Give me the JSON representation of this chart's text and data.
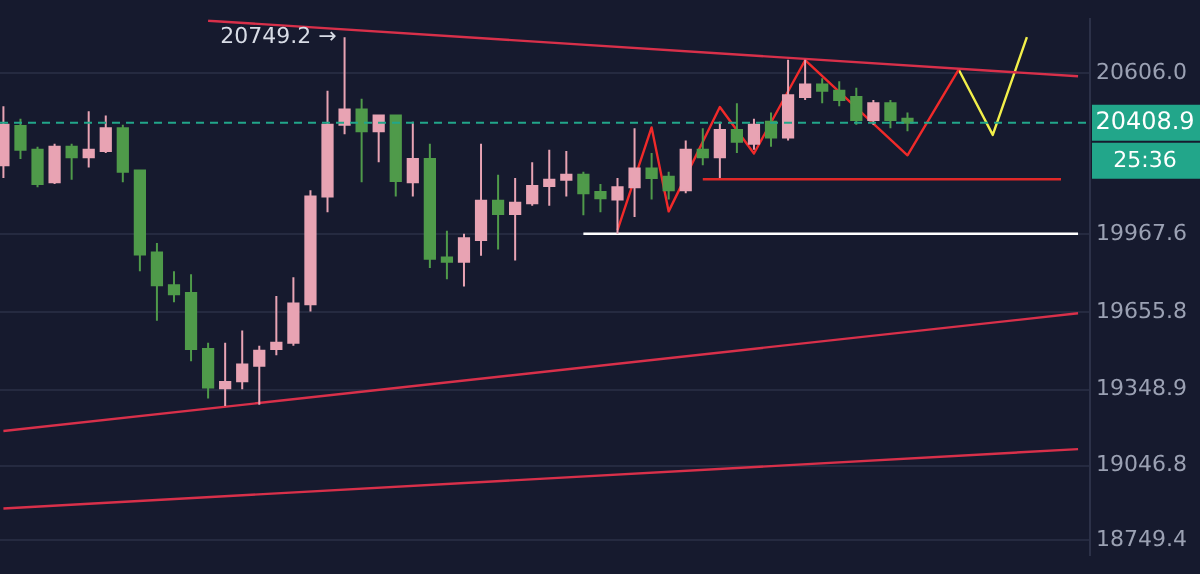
{
  "chart_data": {
    "type": "candlestick",
    "categories": [
      null,
      null,
      null,
      null,
      null,
      null,
      null,
      null,
      null,
      null,
      null,
      null,
      null,
      null,
      null,
      null,
      null,
      null,
      null,
      null,
      null,
      null,
      null,
      null,
      null,
      null,
      null,
      null,
      null,
      null,
      null,
      null,
      null,
      null,
      null,
      null,
      null,
      null,
      null,
      null,
      null,
      null,
      null,
      null,
      null,
      null,
      null,
      null,
      null,
      null,
      null,
      null,
      null,
      null,
      null,
      null,
      null,
      null,
      null,
      null,
      null,
      null,
      null,
      null
    ],
    "ohlc": [
      [
        20240,
        20475,
        20190,
        20401
      ],
      [
        20396,
        20425,
        20265,
        20302
      ],
      [
        20302,
        20314,
        20153,
        20166
      ],
      [
        20173,
        20326,
        20166,
        20314
      ],
      [
        20314,
        20326,
        20183,
        20272
      ],
      [
        20272,
        20455,
        20232,
        20302
      ],
      [
        20297,
        20438,
        20289,
        20388
      ],
      [
        20388,
        20401,
        20173,
        20215
      ],
      [
        20220,
        20220,
        19819,
        19886
      ],
      [
        19894,
        19931,
        19622,
        19763
      ],
      [
        19763,
        19819,
        19696,
        19728
      ],
      [
        19733,
        19807,
        19461,
        19510
      ],
      [
        19510,
        19535,
        19313,
        19357
      ],
      [
        19354,
        19535,
        19283,
        19379
      ],
      [
        19382,
        19584,
        19350,
        19448
      ],
      [
        19443,
        19523,
        19288,
        19503
      ],
      [
        19510,
        19721,
        19485,
        19535
      ],
      [
        19535,
        19795,
        19523,
        19691
      ],
      [
        19688,
        20141,
        19659,
        20116
      ],
      [
        20116,
        20537,
        20054,
        20401
      ],
      [
        20401,
        20749.2,
        20364,
        20462
      ],
      [
        20462,
        20505,
        20173,
        20376
      ],
      [
        20376,
        20438,
        20252,
        20438
      ],
      [
        20438,
        20438,
        20116,
        20178
      ],
      [
        20173,
        20413,
        20116,
        20265
      ],
      [
        20265,
        20326,
        19832,
        19869
      ],
      [
        19874,
        19980,
        19787,
        19857
      ],
      [
        19857,
        19968,
        19758,
        19950
      ],
      [
        19943,
        20326,
        19881,
        20099
      ],
      [
        20099,
        20203,
        19906,
        20047
      ],
      [
        20047,
        20190,
        19862,
        20091
      ],
      [
        20089,
        20252,
        20079,
        20158
      ],
      [
        20158,
        20302,
        20079,
        20183
      ],
      [
        20183,
        20297,
        20116,
        20203
      ],
      [
        20203,
        20215,
        20042,
        20129
      ],
      [
        20134,
        20166,
        20054,
        20109
      ],
      [
        20104,
        20190,
        19968,
        20153
      ],
      [
        20153,
        20388,
        20035,
        20228
      ],
      [
        20228,
        20289,
        20104,
        20190
      ],
      [
        20195,
        20215,
        20104,
        20141
      ],
      [
        20141,
        20339,
        20129,
        20302
      ],
      [
        20302,
        20388,
        20240,
        20272
      ],
      [
        20272,
        20413,
        20190,
        20381
      ],
      [
        20381,
        20487,
        20289,
        20334
      ],
      [
        20326,
        20425,
        20302,
        20401
      ],
      [
        20413,
        20450,
        20314,
        20351
      ],
      [
        20351,
        20660,
        20339,
        20519
      ],
      [
        20512,
        20660,
        20500,
        20561
      ],
      [
        20561,
        20586,
        20487,
        20537
      ],
      [
        20537,
        20574,
        20475,
        20500
      ],
      [
        20512,
        20549,
        20401,
        20420
      ],
      [
        20420,
        20500,
        20401,
        20487
      ],
      [
        20487,
        20500,
        20388,
        20420
      ],
      [
        20425,
        20450,
        20376,
        20408.9
      ],
      null,
      null,
      null,
      null,
      null,
      null,
      null,
      null,
      null,
      null
    ],
    "colors": [
      "#e8a3b3",
      "#4f9a4a",
      "#4f9a4a",
      "#e8a3b3",
      "#4f9a4a",
      "#e8a3b3",
      "#e8a3b3",
      "#4f9a4a",
      "#4f9a4a",
      "#4f9a4a",
      "#4f9a4a",
      "#4f9a4a",
      "#4f9a4a",
      "#e8a3b3",
      "#e8a3b3",
      "#e8a3b3",
      "#e8a3b3",
      "#e8a3b3",
      "#e8a3b3",
      "#e8a3b3",
      "#e8a3b3",
      "#4f9a4a",
      "#e8a3b3",
      "#4f9a4a",
      "#e8a3b3",
      "#4f9a4a",
      "#4f9a4a",
      "#e8a3b3",
      "#e8a3b3",
      "#4f9a4a",
      "#e8a3b3",
      "#e8a3b3",
      "#e8a3b3",
      "#e8a3b3",
      "#4f9a4a",
      "#4f9a4a",
      "#e8a3b3",
      "#e8a3b3",
      "#4f9a4a",
      "#4f9a4a",
      "#e8a3b3",
      "#4f9a4a",
      "#e8a3b3",
      "#4f9a4a",
      "#e8a3b3",
      "#4f9a4a",
      "#e8a3b3",
      "#e8a3b3",
      "#4f9a4a",
      "#4f9a4a",
      "#4f9a4a",
      "#e8a3b3",
      "#4f9a4a",
      "#4f9a4a",
      null,
      null,
      null,
      null,
      null,
      null,
      null,
      null,
      null,
      null
    ],
    "series": [
      {
        "type": "line",
        "color": "#d8304a",
        "values": [
          null,
          null,
          null,
          null,
          null,
          null,
          null,
          null,
          null,
          null,
          null,
          null,
          20815,
          null,
          null,
          null,
          null,
          null,
          null,
          null,
          null,
          null,
          null,
          null,
          null,
          null,
          null,
          null,
          null,
          null,
          null,
          null,
          null,
          null,
          null,
          null,
          null,
          null,
          null,
          null,
          null,
          null,
          null,
          null,
          null,
          null,
          null,
          null,
          null,
          null,
          null,
          null,
          null,
          null,
          null,
          null,
          null,
          null,
          null,
          null,
          null,
          null,
          null,
          20594
        ]
      },
      {
        "type": "line",
        "color": "#d8304a",
        "values": [
          19184,
          null,
          null,
          null,
          null,
          null,
          null,
          null,
          null,
          null,
          null,
          null,
          null,
          null,
          null,
          null,
          null,
          null,
          null,
          null,
          null,
          null,
          null,
          null,
          null,
          null,
          null,
          null,
          null,
          null,
          null,
          null,
          null,
          null,
          null,
          null,
          null,
          null,
          null,
          null,
          null,
          null,
          null,
          null,
          null,
          null,
          null,
          null,
          null,
          null,
          null,
          null,
          null,
          null,
          null,
          null,
          null,
          null,
          null,
          null,
          null,
          null,
          null,
          19652
        ]
      },
      {
        "type": "line",
        "color": "#d8304a",
        "values": [
          18876,
          null,
          null,
          null,
          null,
          null,
          null,
          null,
          null,
          null,
          null,
          null,
          null,
          null,
          null,
          null,
          null,
          null,
          null,
          null,
          null,
          null,
          null,
          null,
          null,
          null,
          null,
          null,
          null,
          null,
          null,
          null,
          null,
          null,
          null,
          null,
          null,
          null,
          null,
          null,
          null,
          null,
          null,
          null,
          null,
          null,
          null,
          null,
          null,
          null,
          null,
          null,
          null,
          null,
          null,
          null,
          null,
          null,
          null,
          null,
          null,
          null,
          null,
          19112
        ]
      },
      {
        "type": "line",
        "color": "#e02828",
        "values": [
          null,
          null,
          null,
          null,
          null,
          null,
          null,
          null,
          null,
          null,
          null,
          null,
          null,
          null,
          null,
          null,
          null,
          null,
          null,
          null,
          null,
          null,
          null,
          null,
          null,
          null,
          null,
          null,
          null,
          null,
          null,
          null,
          null,
          null,
          null,
          null,
          null,
          null,
          null,
          null,
          null,
          20185,
          null,
          null,
          null,
          null,
          null,
          null,
          null,
          null,
          null,
          null,
          null,
          null,
          null,
          null,
          null,
          null,
          null,
          null,
          null,
          null,
          20185,
          null
        ]
      },
      {
        "type": "line",
        "color": "#ffffff",
        "values": [
          null,
          null,
          null,
          null,
          null,
          null,
          null,
          null,
          null,
          null,
          null,
          null,
          null,
          null,
          null,
          null,
          null,
          null,
          null,
          null,
          null,
          null,
          null,
          null,
          null,
          null,
          null,
          null,
          null,
          null,
          null,
          null,
          null,
          null,
          19968,
          null,
          null,
          null,
          null,
          null,
          null,
          null,
          null,
          null,
          null,
          null,
          null,
          null,
          null,
          null,
          null,
          null,
          null,
          null,
          null,
          null,
          null,
          null,
          null,
          null,
          null,
          null,
          null,
          19968
        ]
      },
      {
        "type": "line",
        "color": "#f02a2a",
        "values": [
          null,
          null,
          null,
          null,
          null,
          null,
          null,
          null,
          null,
          null,
          null,
          null,
          null,
          null,
          null,
          null,
          null,
          null,
          null,
          null,
          null,
          null,
          null,
          null,
          null,
          null,
          null,
          null,
          null,
          null,
          null,
          null,
          null,
          null,
          null,
          null,
          19983,
          null,
          20391,
          20057,
          null,
          null,
          20472,
          null,
          20287,
          null,
          null,
          20658,
          null,
          null,
          null,
          null,
          null,
          20280,
          null,
          null,
          20621,
          null,
          null,
          null,
          null,
          null,
          null,
          null
        ]
      },
      {
        "type": "line",
        "color": "#f2ef4a",
        "values": [
          null,
          null,
          null,
          null,
          null,
          null,
          null,
          null,
          null,
          null,
          null,
          null,
          null,
          null,
          null,
          null,
          null,
          null,
          null,
          null,
          null,
          null,
          null,
          null,
          null,
          null,
          null,
          null,
          null,
          null,
          null,
          null,
          null,
          null,
          null,
          null,
          null,
          null,
          null,
          null,
          null,
          null,
          null,
          null,
          null,
          null,
          null,
          null,
          null,
          null,
          null,
          null,
          null,
          null,
          null,
          null,
          20621,
          null,
          20361,
          null,
          20750,
          null,
          null,
          null
        ]
      }
    ],
    "ylim": [
      18692,
      20821
    ],
    "yticks": [
      {
        "value": 20606,
        "label": "20606.0"
      },
      {
        "value": 19967.6,
        "label": "19967.6"
      },
      {
        "value": 19655.8,
        "label": "19655.8"
      },
      {
        "value": 19348.9,
        "label": "19348.9"
      },
      {
        "value": 19046.8,
        "label": "19046.8"
      },
      {
        "value": 18749.4,
        "label": "18749.4"
      }
    ],
    "ref_lines": [
      {
        "axis": "y",
        "value": 20408.9,
        "label": "20408.9",
        "color": "#22a68a",
        "line_style": "dashed"
      }
    ],
    "annotations": [
      "20749.2 →",
      "25:36"
    ],
    "grid": "y",
    "tick_labels": "y",
    "legend": false,
    "line_style": "solid",
    "marker": "none"
  }
}
